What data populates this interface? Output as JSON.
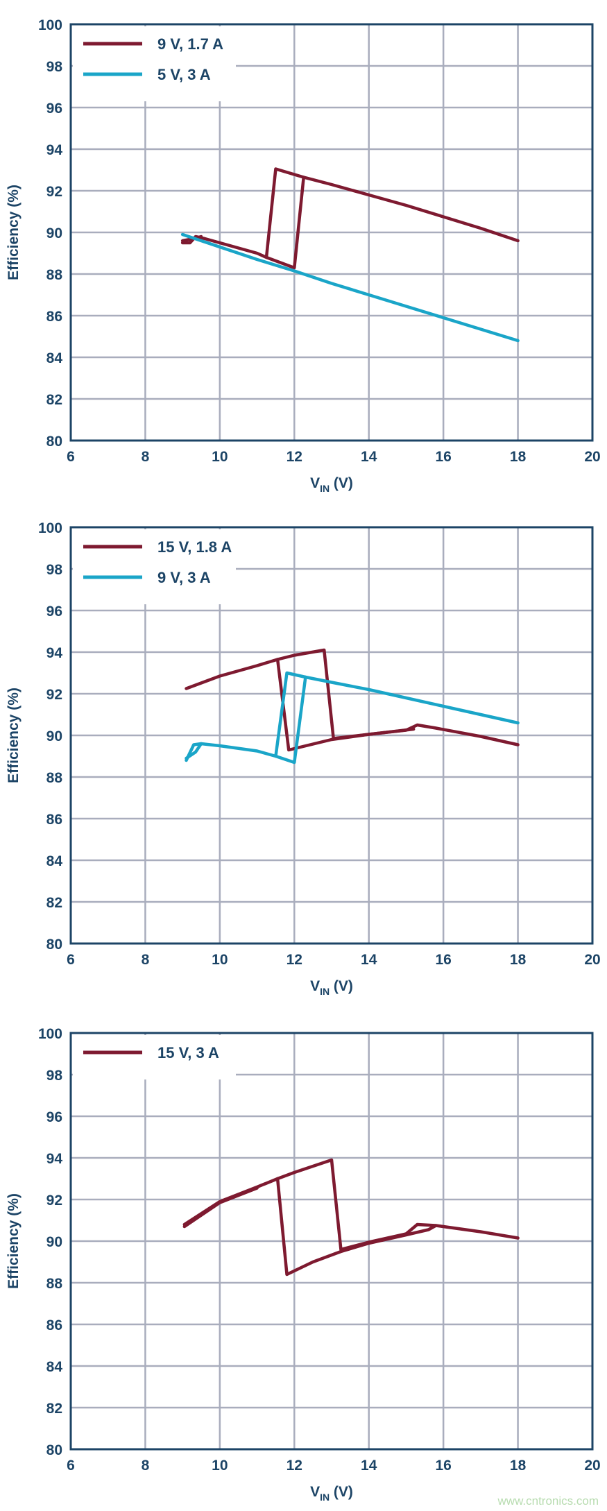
{
  "colors": {
    "axis": "#1c4466",
    "grid": "#a9adbd",
    "red": "#7e1a30",
    "cyan": "#1aa5c8"
  },
  "watermark": "www.cntronics.com",
  "chart_data": [
    {
      "type": "line",
      "xlabel_main": "V",
      "xlabel_sub": "IN",
      "xlabel_unit": " (V)",
      "ylabel": "Efficiency (%)",
      "xlim": [
        6,
        20
      ],
      "ylim": [
        80,
        100
      ],
      "xticks": [
        "6",
        "8",
        "10",
        "12",
        "14",
        "16",
        "18",
        "20"
      ],
      "yticks": [
        "80",
        "82",
        "84",
        "86",
        "88",
        "90",
        "92",
        "94",
        "96",
        "98",
        "100"
      ],
      "grid": true,
      "legend": "top-left",
      "series": [
        {
          "name": "9 V, 1.7 A",
          "color": "#7e1a30",
          "segments": [
            [
              [
                9,
                89.5
              ],
              [
                9.2,
                89.5
              ],
              [
                9.35,
                89.8
              ],
              [
                9.6,
                89.7
              ],
              [
                10,
                89.5
              ],
              [
                11,
                89.0
              ],
              [
                11.25,
                88.8
              ],
              [
                12,
                88.3
              ],
              [
                12.25,
                92.65
              ],
              [
                13,
                92.3
              ],
              [
                14,
                91.8
              ],
              [
                15,
                91.3
              ],
              [
                16,
                90.75
              ],
              [
                17,
                90.2
              ],
              [
                18,
                89.6
              ]
            ],
            [
              [
                11.25,
                88.8
              ],
              [
                11.5,
                93.05
              ],
              [
                12.25,
                92.65
              ]
            ],
            [
              [
                9,
                89.6
              ],
              [
                9.3,
                89.7
              ],
              [
                9.5,
                89.8
              ]
            ]
          ]
        },
        {
          "name": "5 V, 3 A",
          "color": "#1aa5c8",
          "segments": [
            [
              [
                9,
                89.9
              ],
              [
                9.5,
                89.6
              ],
              [
                10,
                89.3
              ],
              [
                11,
                88.7
              ],
              [
                12,
                88.15
              ],
              [
                13,
                87.55
              ],
              [
                14,
                87.0
              ],
              [
                15,
                86.45
              ],
              [
                16,
                85.9
              ],
              [
                17,
                85.35
              ],
              [
                18,
                84.8
              ]
            ]
          ]
        }
      ]
    },
    {
      "type": "line",
      "xlabel_main": "V",
      "xlabel_sub": "IN",
      "xlabel_unit": " (V)",
      "ylabel": "Efficiency (%)",
      "xlim": [
        6,
        20
      ],
      "ylim": [
        80,
        100
      ],
      "xticks": [
        "6",
        "8",
        "10",
        "12",
        "14",
        "16",
        "18",
        "20"
      ],
      "yticks": [
        "80",
        "82",
        "84",
        "86",
        "88",
        "90",
        "92",
        "94",
        "96",
        "98",
        "100"
      ],
      "grid": true,
      "legend": "top-left",
      "series": [
        {
          "name": "15 V, 1.8 A",
          "color": "#7e1a30",
          "segments": [
            [
              [
                9.1,
                92.25
              ],
              [
                10,
                92.85
              ],
              [
                11,
                93.35
              ],
              [
                11.55,
                93.65
              ],
              [
                12,
                93.85
              ],
              [
                12.8,
                94.1
              ],
              [
                13.05,
                89.85
              ],
              [
                14,
                90.05
              ],
              [
                15,
                90.25
              ],
              [
                15.3,
                90.5
              ],
              [
                15.8,
                90.35
              ],
              [
                17,
                89.95
              ],
              [
                18,
                89.55
              ]
            ],
            [
              [
                11.55,
                93.65
              ],
              [
                11.85,
                89.3
              ],
              [
                13,
                89.8
              ],
              [
                14,
                90.05
              ],
              [
                15.2,
                90.3
              ]
            ]
          ]
        },
        {
          "name": "9 V, 3 A",
          "color": "#1aa5c8",
          "segments": [
            [
              [
                9.1,
                88.8
              ],
              [
                9.3,
                89.55
              ],
              [
                9.5,
                89.6
              ],
              [
                10,
                89.5
              ],
              [
                11,
                89.25
              ],
              [
                11.5,
                89.0
              ],
              [
                12,
                88.7
              ],
              [
                12.3,
                92.8
              ],
              [
                13,
                92.55
              ],
              [
                14,
                92.2
              ],
              [
                15,
                91.8
              ],
              [
                16,
                91.4
              ],
              [
                17,
                91.0
              ],
              [
                18,
                90.6
              ]
            ],
            [
              [
                11.5,
                89.0
              ],
              [
                11.8,
                93.0
              ],
              [
                12.3,
                92.8
              ]
            ],
            [
              [
                9.1,
                88.9
              ],
              [
                9.35,
                89.2
              ],
              [
                9.5,
                89.6
              ]
            ]
          ]
        }
      ]
    },
    {
      "type": "line",
      "xlabel_main": "V",
      "xlabel_sub": "IN",
      "xlabel_unit": " (V)",
      "ylabel": "Efficiency (%)",
      "xlim": [
        6,
        20
      ],
      "ylim": [
        80,
        100
      ],
      "xticks": [
        "6",
        "8",
        "10",
        "12",
        "14",
        "16",
        "18",
        "20"
      ],
      "yticks": [
        "80",
        "82",
        "84",
        "86",
        "88",
        "90",
        "92",
        "94",
        "96",
        "98",
        "100"
      ],
      "grid": true,
      "legend": "top-left",
      "series": [
        {
          "name": "15 V, 3 A",
          "color": "#7e1a30",
          "segments": [
            [
              [
                9.05,
                90.8
              ],
              [
                10,
                91.9
              ],
              [
                11,
                92.6
              ],
              [
                11.55,
                93.0
              ],
              [
                12,
                93.3
              ],
              [
                13,
                93.9
              ],
              [
                13.25,
                89.6
              ],
              [
                14,
                89.95
              ],
              [
                15,
                90.35
              ],
              [
                15.3,
                90.8
              ],
              [
                15.8,
                90.75
              ],
              [
                17,
                90.45
              ],
              [
                18,
                90.15
              ]
            ],
            [
              [
                11.55,
                93.0
              ],
              [
                11.8,
                88.4
              ],
              [
                12.5,
                89.0
              ],
              [
                13.25,
                89.5
              ],
              [
                14,
                89.9
              ],
              [
                15,
                90.3
              ],
              [
                15.6,
                90.55
              ],
              [
                15.8,
                90.75
              ]
            ],
            [
              [
                9.05,
                90.7
              ],
              [
                10,
                91.85
              ],
              [
                11,
                92.55
              ]
            ]
          ]
        }
      ]
    }
  ]
}
